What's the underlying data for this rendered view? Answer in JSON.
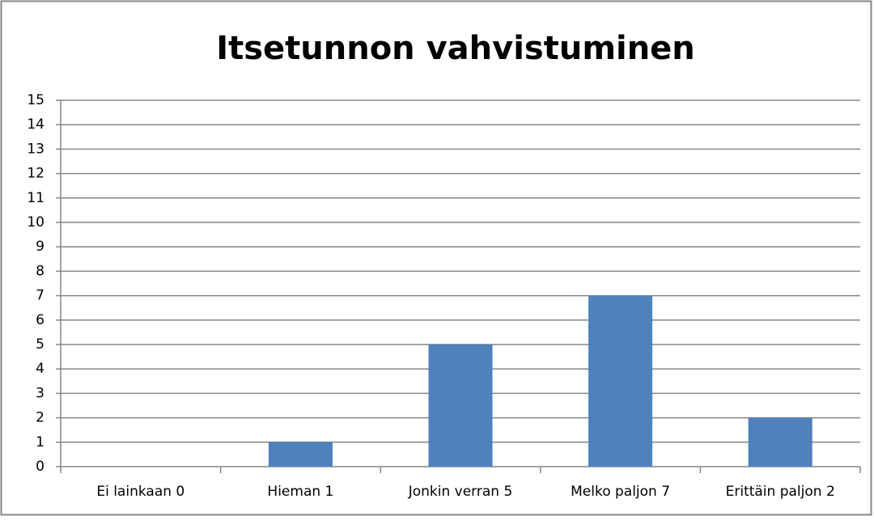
{
  "chart_data": {
    "type": "bar",
    "title": "Itsetunnon vahvistuminen",
    "categories": [
      "Ei lainkaan 0",
      "Hieman 1",
      "Jonkin verran 5",
      "Melko paljon 7",
      "Erittäin paljon 2"
    ],
    "values": [
      0,
      1,
      5,
      7,
      2
    ],
    "color": "#4f81bd",
    "ylim": [
      0,
      15
    ],
    "yticks": [
      0,
      1,
      2,
      3,
      4,
      5,
      6,
      7,
      8,
      9,
      10,
      11,
      12,
      13,
      14,
      15
    ],
    "grid": true
  }
}
